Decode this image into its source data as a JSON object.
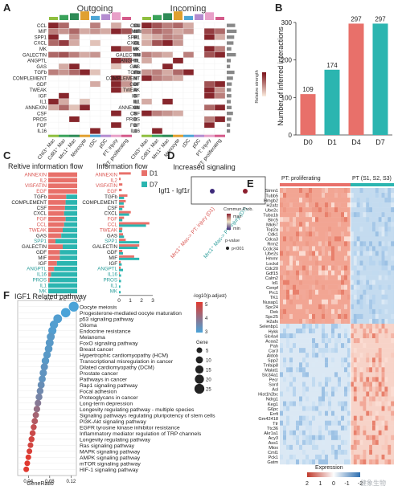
{
  "panels": {
    "A": {
      "letter": "A",
      "titles": [
        "Outgoing",
        "Incoming"
      ],
      "pathways": [
        "CCL",
        "MIF",
        "SPP1",
        "CXCL",
        "MK",
        "GALECTIN",
        "ANGPTL",
        "GAS",
        "TGFb",
        "COMPLEMENT",
        "GDF",
        "TWEAK",
        "IGF",
        "IL1",
        "ANNEXIN",
        "CSF",
        "PROS",
        "FGF",
        "IL16"
      ],
      "cell_types": [
        "Chil3⁺ Mac",
        "Cd81⁺ Mac",
        "Mrc1⁺ Mac",
        "Monocyte",
        "cDC",
        "pDC",
        "PT: injury",
        "PT: proliferating"
      ],
      "cell_colors": [
        "#8fbf3f",
        "#3aa25a",
        "#2e8b57",
        "#e0a030",
        "#4da6d6",
        "#b48cd0",
        "#e8a0c8",
        "#d45a8a"
      ],
      "legend_label": "Relative strength",
      "outgoing_matrix": [
        [
          0.9,
          0.6,
          0.0,
          0.0,
          0.5,
          0.0,
          0.3,
          0.0
        ],
        [
          0.5,
          0.4,
          0.6,
          0.3,
          0.4,
          0.3,
          0.9,
          0.7
        ],
        [
          0.9,
          0.0,
          0.4,
          0.0,
          0.0,
          0.0,
          0.0,
          0.0
        ],
        [
          0.6,
          0.8,
          0.3,
          0.0,
          0.2,
          0.0,
          0.0,
          0.0
        ],
        [
          0.0,
          0.0,
          0.0,
          0.0,
          0.0,
          0.0,
          0.9,
          0.5
        ],
        [
          0.6,
          0.7,
          0.5,
          0.3,
          0.4,
          0.0,
          0.0,
          0.0
        ],
        [
          0.0,
          0.0,
          0.0,
          0.0,
          0.0,
          0.0,
          0.9,
          0.6
        ],
        [
          0.0,
          0.3,
          0.9,
          0.0,
          0.0,
          0.0,
          0.2,
          0.0
        ],
        [
          0.5,
          0.4,
          0.6,
          0.9,
          0.2,
          0.0,
          0.0,
          0.0
        ],
        [
          0.0,
          0.0,
          0.0,
          0.0,
          0.0,
          0.0,
          0.9,
          0.3
        ],
        [
          0.0,
          0.0,
          0.0,
          0.0,
          0.3,
          0.0,
          0.9,
          0.4
        ],
        [
          0.0,
          0.0,
          0.0,
          0.0,
          0.0,
          0.0,
          0.9,
          0.2
        ],
        [
          0.0,
          0.9,
          0.0,
          0.0,
          0.0,
          0.0,
          0.0,
          0.0
        ],
        [
          0.9,
          0.3,
          0.0,
          0.2,
          0.0,
          0.0,
          0.0,
          0.0
        ],
        [
          0.3,
          0.6,
          0.2,
          0.9,
          0.0,
          0.0,
          0.0,
          0.0
        ],
        [
          0.0,
          0.0,
          0.0,
          0.0,
          0.0,
          0.0,
          0.9,
          0.0
        ],
        [
          0.0,
          0.0,
          0.9,
          0.0,
          0.0,
          0.0,
          0.0,
          0.0
        ],
        [
          0.0,
          0.0,
          0.0,
          0.0,
          0.0,
          0.0,
          0.9,
          0.0
        ],
        [
          0.0,
          0.0,
          0.0,
          0.0,
          0.9,
          0.0,
          0.0,
          0.0
        ]
      ],
      "incoming_matrix": [
        [
          0.9,
          0.7,
          0.5,
          0.6,
          0.3,
          0.0,
          0.0,
          0.0
        ],
        [
          0.4,
          0.6,
          0.5,
          0.3,
          0.4,
          0.0,
          0.8,
          0.6
        ],
        [
          0.2,
          0.3,
          0.5,
          0.4,
          0.0,
          0.0,
          0.9,
          0.3
        ],
        [
          0.3,
          0.7,
          0.9,
          0.4,
          0.0,
          0.0,
          0.0,
          0.0
        ],
        [
          0.0,
          0.0,
          0.0,
          0.0,
          0.0,
          0.0,
          0.9,
          0.5
        ],
        [
          0.5,
          0.4,
          0.3,
          0.0,
          0.5,
          0.0,
          0.7,
          0.9
        ],
        [
          0.3,
          0.0,
          0.0,
          0.9,
          0.0,
          0.0,
          0.0,
          0.0
        ],
        [
          0.0,
          0.0,
          0.9,
          0.0,
          0.0,
          0.0,
          0.0,
          0.0
        ],
        [
          0.4,
          0.5,
          0.3,
          0.6,
          0.9,
          0.0,
          0.0,
          0.0
        ],
        [
          0.9,
          0.5,
          0.4,
          0.3,
          0.0,
          0.0,
          0.0,
          0.0
        ],
        [
          0.0,
          0.0,
          0.0,
          0.0,
          0.0,
          0.0,
          0.7,
          0.9
        ],
        [
          0.0,
          0.0,
          0.0,
          0.0,
          0.0,
          0.0,
          0.9,
          0.4
        ],
        [
          0.0,
          0.0,
          0.0,
          0.0,
          0.0,
          0.0,
          0.9,
          0.5
        ],
        [
          0.3,
          0.0,
          0.9,
          0.0,
          0.0,
          0.0,
          0.0,
          0.0
        ],
        [
          0.0,
          0.0,
          0.0,
          0.0,
          0.0,
          0.0,
          0.6,
          0.9
        ],
        [
          0.9,
          0.5,
          0.4,
          0.3,
          0.0,
          0.0,
          0.0,
          0.0
        ],
        [
          0.0,
          0.0,
          0.0,
          0.0,
          0.0,
          0.0,
          0.5,
          0.9
        ],
        [
          0.0,
          0.0,
          0.0,
          0.0,
          0.0,
          0.0,
          0.9,
          0.0
        ],
        [
          0.0,
          0.9,
          0.0,
          0.0,
          0.0,
          0.0,
          0.0,
          0.0
        ]
      ]
    },
    "B": {
      "letter": "B",
      "chart_data": {
        "type": "bar",
        "categories": [
          "D0",
          "D1",
          "D4",
          "D7"
        ],
        "values": [
          109,
          174,
          297,
          297
        ],
        "colors": [
          "#e8706a",
          "#2bb5b0",
          "#e8706a",
          "#2bb5b0"
        ],
        "ylabel": "Number of inferred interactions",
        "ylim": [
          0,
          300
        ],
        "yticks": [
          0,
          100,
          200,
          300
        ]
      }
    },
    "C": {
      "letter": "C",
      "left_title": "Reltive information flow",
      "right_title": "Information flow",
      "legend": [
        {
          "name": "D1",
          "color": "#e8706a"
        },
        {
          "name": "D7",
          "color": "#2bb5b0"
        }
      ],
      "pathways": [
        "ANNEXIN",
        "IL2",
        "VISFATIN",
        "EGF",
        "TGFb",
        "COMPLEMENT",
        "CSF",
        "CXCL",
        "FGF",
        "CCL",
        "TWEAK",
        "GAS",
        "SPP1",
        "GALECTIN",
        "GDF",
        "MIF",
        "IGF",
        "ANGPTL",
        "IL16",
        "PROS",
        "IL1",
        "MK"
      ],
      "label_colors": [
        "#d9534f",
        "#d9534f",
        "#d9534f",
        "#d9534f",
        "#222222",
        "#222222",
        "#222222",
        "#222222",
        "#d9534f",
        "#d9534f",
        "#d9534f",
        "#222222",
        "#2a9d9a",
        "#222222",
        "#222222",
        "#222222",
        "#222222",
        "#2a9d9a",
        "#2a9d9a",
        "#2a9d9a",
        "#2a9d9a",
        "#2a9d9a"
      ],
      "chart_data": {
        "type": "bar",
        "relative_d1": [
          1.0,
          1.0,
          1.0,
          1.0,
          0.62,
          0.6,
          0.58,
          0.55,
          0.6,
          0.55,
          0.5,
          0.45,
          0.25,
          0.5,
          0.4,
          0.4,
          0.3,
          0.2,
          0.1,
          0.05,
          0.0,
          0.0
        ],
        "absolute_d1": [
          0.35,
          0.05,
          0.1,
          0.08,
          0.25,
          0.2,
          0.15,
          0.35,
          0.15,
          0.9,
          0.1,
          0.12,
          0.2,
          0.6,
          0.1,
          0.45,
          0.05,
          0.05,
          0.02,
          0.01,
          0.0,
          0.0
        ],
        "absolute_d7": [
          0.0,
          0.0,
          0.0,
          0.0,
          0.15,
          0.14,
          0.1,
          0.3,
          0.1,
          0.8,
          0.09,
          0.15,
          0.6,
          0.55,
          0.12,
          0.6,
          0.08,
          0.12,
          0.06,
          0.06,
          0.04,
          0.05
        ],
        "left_ticks": [
          "0.0",
          "0.5",
          "1.0"
        ],
        "right_ticks": [
          "0",
          "1",
          "2",
          "3"
        ]
      }
    },
    "D": {
      "letter": "D",
      "title": "Increased signaling",
      "pair_label": "Igf1 - Igf1r",
      "x_labels": [
        "Mrc1⁺ Mac-> PT: injury (D1)",
        "Mrc1⁺ Mac-> PT: injury (D7)"
      ],
      "x_label_colors": [
        "#d9534f",
        "#2a9d9a"
      ],
      "legend_title": "Commun.Prob.",
      "legend_max": "max",
      "legend_min": "min",
      "pvalue_title": "p-value",
      "pvalue_label": "p<001"
    },
    "E": {
      "letter": "E",
      "group_labels": [
        "PT: proliferating",
        "PT (S1, S2, S3)"
      ],
      "group_colors": [
        "#e8706a",
        "#2bb5b0"
      ],
      "genes": [
        "Stmn1",
        "Tubb5",
        "Hmgb2",
        "H2afz",
        "Ube2c",
        "Tuba1b",
        "Birc5",
        "Mki67",
        "Top2a",
        "Cdk1",
        "Cdca3",
        "Rrm2",
        "Ccdc34",
        "Ube2s",
        "Hmmr",
        "Lockd",
        "Cdc20",
        "Gdf15",
        "Calm2",
        "Id1",
        "Cenpf",
        "Prc1",
        "TK1",
        "Nusap1",
        "Spc24",
        "Dek",
        "Spc25",
        "H2afx",
        "Selenbp1",
        "Hykk",
        "Slc4a4",
        "Acaa2",
        "Pah",
        "Car3",
        "Aldob",
        "Spp2",
        "Tnfaip8",
        "Malat1",
        "Slc34a1",
        "Pecr",
        "Sord",
        "Asl",
        "Hist1h2bc",
        "Ndrg1",
        "Keg1",
        "G6pc",
        "Errfi",
        "Gm42418",
        "Ttr",
        "Ttc36",
        "Akr1a1",
        "Acy3",
        "Ass1",
        "Miox",
        "Cml1",
        "Pck1",
        "Gatm"
      ],
      "n_upregulated": 28,
      "legend_title": "Expression",
      "legend_ticks": [
        "2",
        "1",
        "0",
        "-1",
        "-2"
      ]
    },
    "F": {
      "letter": "F",
      "title": "IGF1 Related pathway",
      "legend_color_title": "-log10(p.adjust)",
      "legend_color_ticks": [
        "5",
        "4",
        "3"
      ],
      "legend_size_title": "Gene",
      "legend_size_ticks": [
        "5",
        "10",
        "15",
        "20",
        "25"
      ],
      "xlabel": "GeneRatio",
      "xticks": [
        "0.04",
        "0.08",
        "0.12"
      ],
      "chart_data": {
        "type": "scatter",
        "terms": [
          "Oocyte meiosis",
          "Progesterone-mediated oocyte maturation",
          "p53 signaling pathway",
          "Glioma",
          "Endocrine resistance",
          "Melanoma",
          "FoxO signaling pathway",
          "Breast cancer",
          "Hypertrophic cardiomyopathy (HCM)",
          "Transcriptional misregulation in cancer",
          "Dilated cardiomyopathy (DCM)",
          "Prostate cancer",
          "Pathways in cancer",
          "Rap1 signaling pathway",
          "Focal adhesion",
          "Proteoglycans in cancer",
          "Long-term depression",
          "Longevity regulating pathway - multiple species",
          "Signaling pathways regulating pluripotency of stem cells",
          "PI3K-Akt signaling pathway",
          "EGFR tyrosine kinase inhibitor resistance",
          "Inflammatory mediator regulation of TRP channels",
          "Longevity regulating pathway",
          "Ras signaling pathway",
          "MAPK signaling pathway",
          "AMPK signaling pathway",
          "mTOR signaling pathway",
          "HIF-1 signaling pathway"
        ],
        "gene_ratio": [
          0.125,
          0.11,
          0.095,
          0.088,
          0.085,
          0.082,
          0.08,
          0.078,
          0.075,
          0.072,
          0.07,
          0.068,
          0.066,
          0.064,
          0.062,
          0.06,
          0.058,
          0.056,
          0.054,
          0.052,
          0.05,
          0.048,
          0.046,
          0.044,
          0.042,
          0.04,
          0.038,
          0.036
        ],
        "gene_count": [
          25,
          22,
          18,
          16,
          15,
          14,
          14,
          13,
          12,
          12,
          11,
          11,
          10,
          10,
          9,
          9,
          8,
          8,
          7,
          7,
          6,
          6,
          6,
          5,
          5,
          5,
          5,
          5
        ],
        "neglog10_padj": [
          3.0,
          3.0,
          3.1,
          3.1,
          3.1,
          3.2,
          3.2,
          3.2,
          3.2,
          3.2,
          3.3,
          3.3,
          3.3,
          3.4,
          3.5,
          3.6,
          3.8,
          4.0,
          4.2,
          4.4,
          4.6,
          4.7,
          4.8,
          4.8,
          4.9,
          5.0,
          5.0,
          5.0
        ],
        "xlim": [
          0.02,
          0.13
        ]
      }
    }
  },
  "watermark": "健象生物"
}
